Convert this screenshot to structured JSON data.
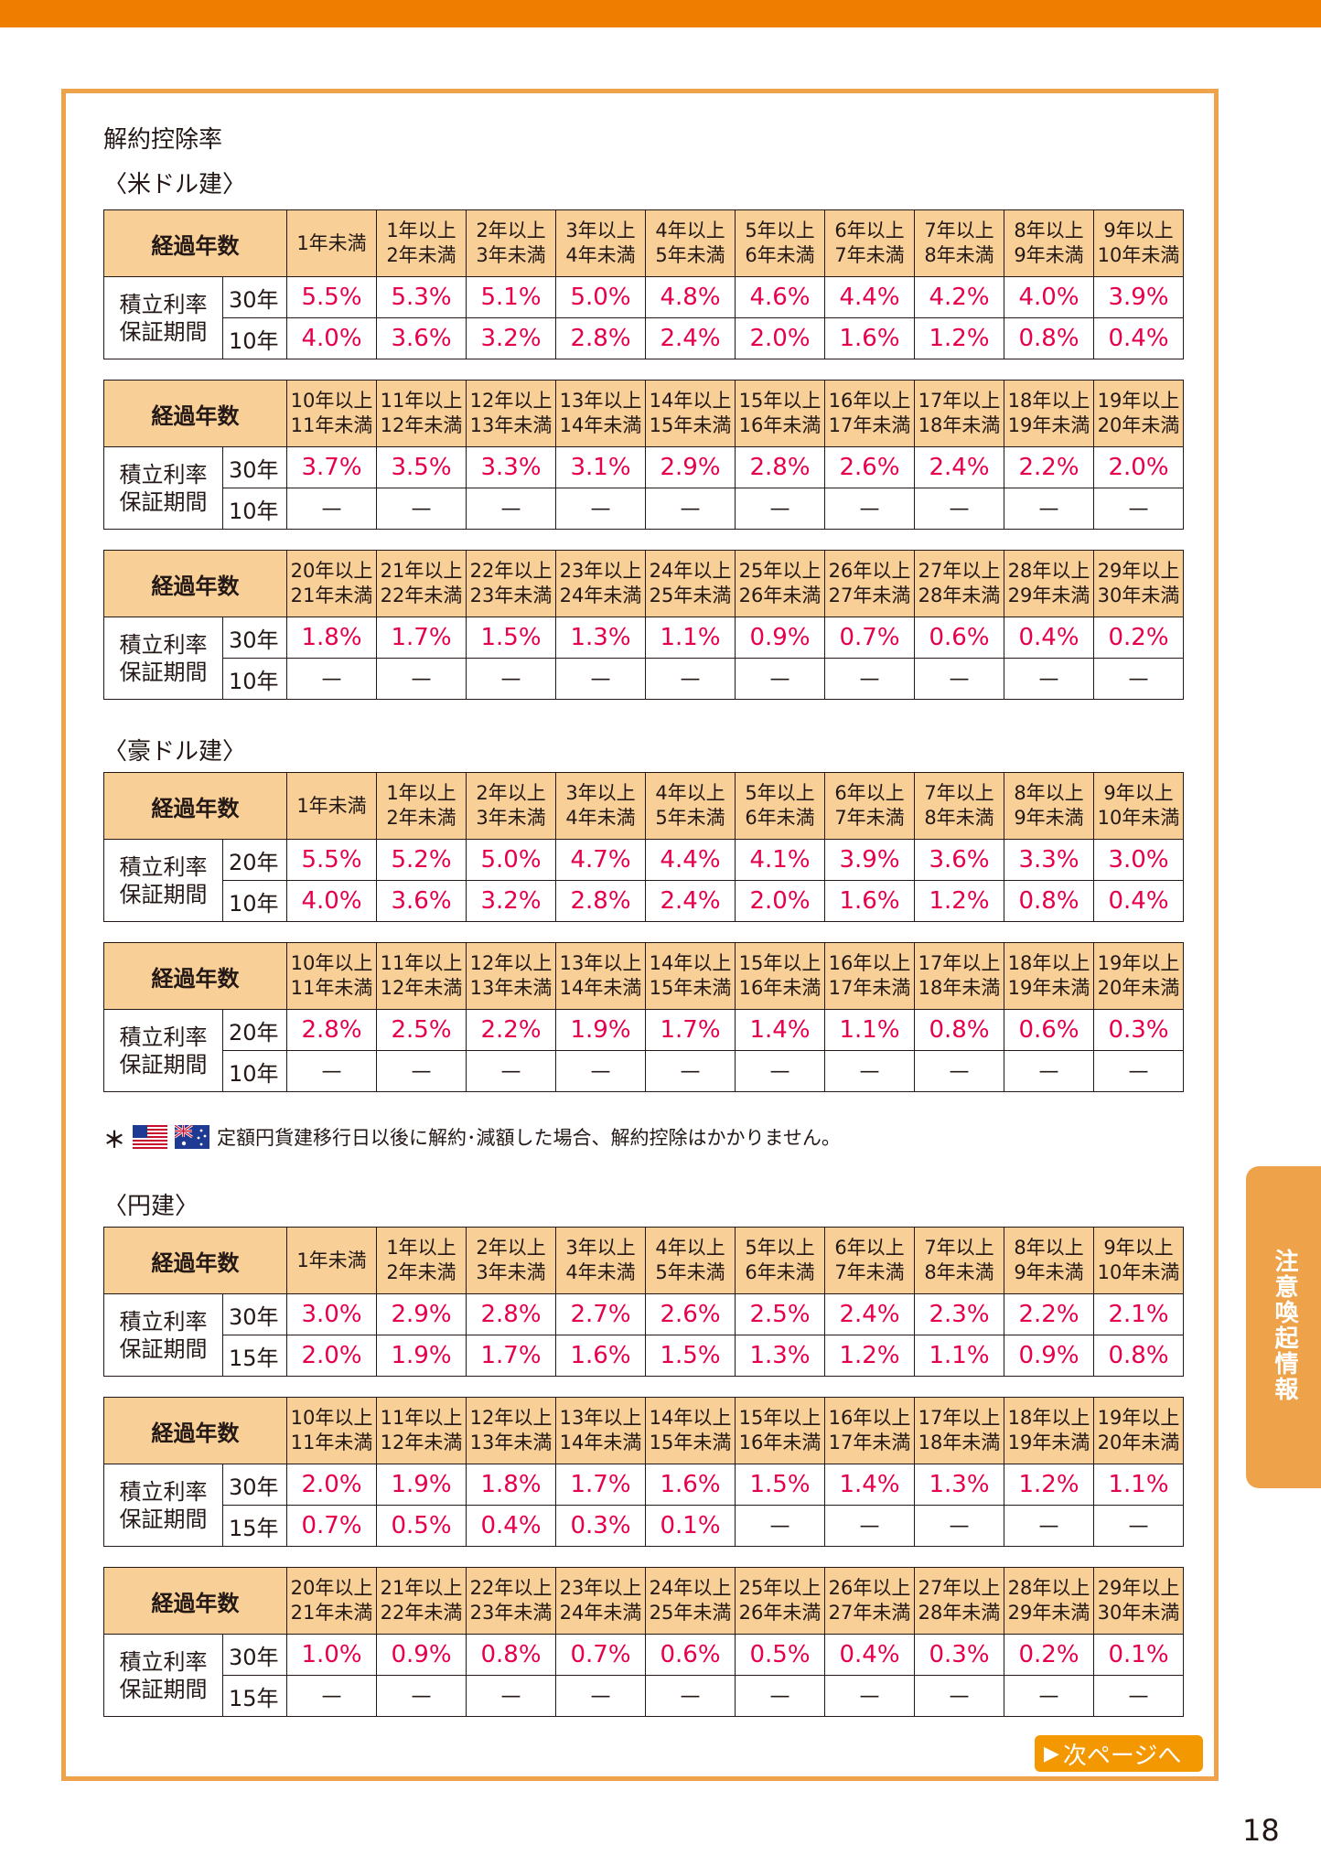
{
  "header_color": "#ee7d00",
  "title": "解約控除率",
  "note": {
    "marker": "＊",
    "flags": [
      "us-flag-icon",
      "australia-flag-icon"
    ],
    "text": "定額円貨建移行日以後に解約･減額した場合、解約控除はかかりません。"
  },
  "side_tab": "注意喚起情報",
  "next_page": "次ページへ",
  "page_number": "18",
  "sections": [
    {
      "heading": "〈米ドル建〉",
      "tables": [
        {
          "elapsed_label": "経過年数",
          "row_label": "積立利率\n保証期間",
          "columns": [
            "1年未満",
            "1年以上\n2年未満",
            "2年以上\n3年未満",
            "3年以上\n4年未満",
            "4年以上\n5年未満",
            "5年以上\n6年未満",
            "6年以上\n7年未満",
            "7年以上\n8年未満",
            "8年以上\n9年未満",
            "9年以上\n10年未満"
          ],
          "rows": [
            {
              "term": "30年",
              "values": [
                "5.5%",
                "5.3%",
                "5.1%",
                "5.0%",
                "4.8%",
                "4.6%",
                "4.4%",
                "4.2%",
                "4.0%",
                "3.9%"
              ]
            },
            {
              "term": "10年",
              "values": [
                "4.0%",
                "3.6%",
                "3.2%",
                "2.8%",
                "2.4%",
                "2.0%",
                "1.6%",
                "1.2%",
                "0.8%",
                "0.4%"
              ]
            }
          ]
        },
        {
          "elapsed_label": "経過年数",
          "row_label": "積立利率\n保証期間",
          "columns": [
            "10年以上\n11年未満",
            "11年以上\n12年未満",
            "12年以上\n13年未満",
            "13年以上\n14年未満",
            "14年以上\n15年未満",
            "15年以上\n16年未満",
            "16年以上\n17年未満",
            "17年以上\n18年未満",
            "18年以上\n19年未満",
            "19年以上\n20年未満"
          ],
          "rows": [
            {
              "term": "30年",
              "values": [
                "3.7%",
                "3.5%",
                "3.3%",
                "3.1%",
                "2.9%",
                "2.8%",
                "2.6%",
                "2.4%",
                "2.2%",
                "2.0%"
              ]
            },
            {
              "term": "10年",
              "values": [
                "—",
                "—",
                "—",
                "—",
                "—",
                "—",
                "—",
                "—",
                "—",
                "—"
              ]
            }
          ]
        },
        {
          "elapsed_label": "経過年数",
          "row_label": "積立利率\n保証期間",
          "columns": [
            "20年以上\n21年未満",
            "21年以上\n22年未満",
            "22年以上\n23年未満",
            "23年以上\n24年未満",
            "24年以上\n25年未満",
            "25年以上\n26年未満",
            "26年以上\n27年未満",
            "27年以上\n28年未満",
            "28年以上\n29年未満",
            "29年以上\n30年未満"
          ],
          "rows": [
            {
              "term": "30年",
              "values": [
                "1.8%",
                "1.7%",
                "1.5%",
                "1.3%",
                "1.1%",
                "0.9%",
                "0.7%",
                "0.6%",
                "0.4%",
                "0.2%"
              ]
            },
            {
              "term": "10年",
              "values": [
                "—",
                "—",
                "—",
                "—",
                "—",
                "—",
                "—",
                "—",
                "—",
                "—"
              ]
            }
          ]
        }
      ]
    },
    {
      "heading": "〈豪ドル建〉",
      "tables": [
        {
          "elapsed_label": "経過年数",
          "row_label": "積立利率\n保証期間",
          "columns": [
            "1年未満",
            "1年以上\n2年未満",
            "2年以上\n3年未満",
            "3年以上\n4年未満",
            "4年以上\n5年未満",
            "5年以上\n6年未満",
            "6年以上\n7年未満",
            "7年以上\n8年未満",
            "8年以上\n9年未満",
            "9年以上\n10年未満"
          ],
          "rows": [
            {
              "term": "20年",
              "values": [
                "5.5%",
                "5.2%",
                "5.0%",
                "4.7%",
                "4.4%",
                "4.1%",
                "3.9%",
                "3.6%",
                "3.3%",
                "3.0%"
              ]
            },
            {
              "term": "10年",
              "values": [
                "4.0%",
                "3.6%",
                "3.2%",
                "2.8%",
                "2.4%",
                "2.0%",
                "1.6%",
                "1.2%",
                "0.8%",
                "0.4%"
              ]
            }
          ]
        },
        {
          "elapsed_label": "経過年数",
          "row_label": "積立利率\n保証期間",
          "columns": [
            "10年以上\n11年未満",
            "11年以上\n12年未満",
            "12年以上\n13年未満",
            "13年以上\n14年未満",
            "14年以上\n15年未満",
            "15年以上\n16年未満",
            "16年以上\n17年未満",
            "17年以上\n18年未満",
            "18年以上\n19年未満",
            "19年以上\n20年未満"
          ],
          "rows": [
            {
              "term": "20年",
              "values": [
                "2.8%",
                "2.5%",
                "2.2%",
                "1.9%",
                "1.7%",
                "1.4%",
                "1.1%",
                "0.8%",
                "0.6%",
                "0.3%"
              ]
            },
            {
              "term": "10年",
              "values": [
                "—",
                "—",
                "—",
                "—",
                "—",
                "—",
                "—",
                "—",
                "—",
                "—"
              ]
            }
          ]
        }
      ]
    },
    {
      "heading": "〈円建〉",
      "tables": [
        {
          "elapsed_label": "経過年数",
          "row_label": "積立利率\n保証期間",
          "columns": [
            "1年未満",
            "1年以上\n2年未満",
            "2年以上\n3年未満",
            "3年以上\n4年未満",
            "4年以上\n5年未満",
            "5年以上\n6年未満",
            "6年以上\n7年未満",
            "7年以上\n8年未満",
            "8年以上\n9年未満",
            "9年以上\n10年未満"
          ],
          "rows": [
            {
              "term": "30年",
              "values": [
                "3.0%",
                "2.9%",
                "2.8%",
                "2.7%",
                "2.6%",
                "2.5%",
                "2.4%",
                "2.3%",
                "2.2%",
                "2.1%"
              ]
            },
            {
              "term": "15年",
              "values": [
                "2.0%",
                "1.9%",
                "1.7%",
                "1.6%",
                "1.5%",
                "1.3%",
                "1.2%",
                "1.1%",
                "0.9%",
                "0.8%"
              ]
            }
          ]
        },
        {
          "elapsed_label": "経過年数",
          "row_label": "積立利率\n保証期間",
          "columns": [
            "10年以上\n11年未満",
            "11年以上\n12年未満",
            "12年以上\n13年未満",
            "13年以上\n14年未満",
            "14年以上\n15年未満",
            "15年以上\n16年未満",
            "16年以上\n17年未満",
            "17年以上\n18年未満",
            "18年以上\n19年未満",
            "19年以上\n20年未満"
          ],
          "rows": [
            {
              "term": "30年",
              "values": [
                "2.0%",
                "1.9%",
                "1.8%",
                "1.7%",
                "1.6%",
                "1.5%",
                "1.4%",
                "1.3%",
                "1.2%",
                "1.1%"
              ]
            },
            {
              "term": "15年",
              "values": [
                "0.7%",
                "0.5%",
                "0.4%",
                "0.3%",
                "0.1%",
                "—",
                "—",
                "—",
                "—",
                "—"
              ]
            }
          ]
        },
        {
          "elapsed_label": "経過年数",
          "row_label": "積立利率\n保証期間",
          "columns": [
            "20年以上\n21年未満",
            "21年以上\n22年未満",
            "22年以上\n23年未満",
            "23年以上\n24年未満",
            "24年以上\n25年未満",
            "25年以上\n26年未満",
            "26年以上\n27年未満",
            "27年以上\n28年未満",
            "28年以上\n29年未満",
            "29年以上\n30年未満"
          ],
          "rows": [
            {
              "term": "30年",
              "values": [
                "1.0%",
                "0.9%",
                "0.8%",
                "0.7%",
                "0.6%",
                "0.5%",
                "0.4%",
                "0.3%",
                "0.2%",
                "0.1%"
              ]
            },
            {
              "term": "15年",
              "values": [
                "—",
                "—",
                "—",
                "—",
                "—",
                "—",
                "—",
                "—",
                "—",
                "—"
              ]
            }
          ]
        }
      ]
    }
  ]
}
